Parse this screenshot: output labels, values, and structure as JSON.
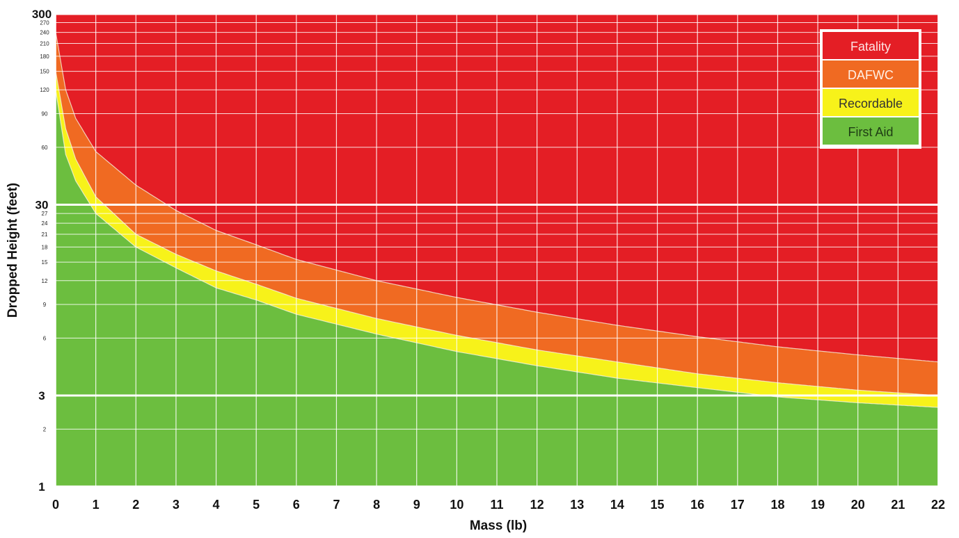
{
  "chart_data": {
    "type": "area",
    "title": "",
    "xlabel": "Mass (lb)",
    "ylabel": "Dropped Height (feet)",
    "xlim": [
      0,
      22
    ],
    "ylim": [
      1,
      300
    ],
    "y_scale": "log",
    "grid": true,
    "legend_position": "top-right",
    "x_ticks": [
      "0",
      "1",
      "2",
      "3",
      "4",
      "5",
      "6",
      "7",
      "8",
      "9",
      "10",
      "11",
      "12",
      "13",
      "14",
      "15",
      "16",
      "17",
      "18",
      "19",
      "20",
      "21",
      "22"
    ],
    "y_major_ticks": [
      {
        "value": 1,
        "label": "1"
      },
      {
        "value": 3,
        "label": "3"
      },
      {
        "value": 30,
        "label": "30"
      },
      {
        "value": 300,
        "label": "300"
      }
    ],
    "y_minor_ticks": [
      {
        "value": 2,
        "label": "2"
      },
      {
        "value": 6,
        "label": "6"
      },
      {
        "value": 9,
        "label": "9"
      },
      {
        "value": 12,
        "label": "12"
      },
      {
        "value": 15,
        "label": "15"
      },
      {
        "value": 18,
        "label": "18"
      },
      {
        "value": 21,
        "label": "21"
      },
      {
        "value": 24,
        "label": "24"
      },
      {
        "value": 27,
        "label": "27"
      },
      {
        "value": 60,
        "label": "60"
      },
      {
        "value": 90,
        "label": "90"
      },
      {
        "value": 120,
        "label": "120"
      },
      {
        "value": 150,
        "label": "150"
      },
      {
        "value": 180,
        "label": "180"
      },
      {
        "value": 210,
        "label": "210"
      },
      {
        "value": 240,
        "label": "240"
      },
      {
        "value": 270,
        "label": "270"
      }
    ],
    "legend": [
      {
        "label": "Fatality",
        "color": "#e41e25",
        "text_color": "#fde3e3"
      },
      {
        "label": "DAFWC",
        "color": "#f06a22",
        "text_color": "#fff1e6"
      },
      {
        "label": "Recordable",
        "color": "#f7f21a",
        "text_color": "#333333"
      },
      {
        "label": "First Aid",
        "color": "#6cbe3f",
        "text_color": "#1e3d14"
      }
    ],
    "series": [
      {
        "name": "First Aid",
        "color": "#6cbe3f",
        "x": [
          0,
          0.25,
          0.5,
          1,
          2,
          3,
          4,
          5,
          6,
          8,
          10,
          12,
          14,
          16,
          18,
          20,
          22
        ],
        "upper": [
          120,
          55,
          40,
          27,
          18,
          14,
          11,
          9.5,
          8,
          6.3,
          5.1,
          4.3,
          3.7,
          3.3,
          2.95,
          2.75,
          2.6
        ]
      },
      {
        "name": "Recordable",
        "color": "#f7f21a",
        "x": [
          0,
          0.25,
          0.5,
          1,
          2,
          3,
          4,
          5,
          6,
          8,
          10,
          12,
          14,
          16,
          18,
          20,
          22
        ],
        "upper": [
          150,
          75,
          52,
          33,
          21,
          16.5,
          13.5,
          11.5,
          9.7,
          7.6,
          6.2,
          5.2,
          4.5,
          3.9,
          3.5,
          3.2,
          3.0
        ]
      },
      {
        "name": "DAFWC",
        "color": "#f06a22",
        "x": [
          0,
          0.25,
          0.5,
          1,
          2,
          3,
          4,
          5,
          6,
          8,
          10,
          12,
          14,
          16,
          18,
          20,
          22
        ],
        "upper": [
          240,
          120,
          85,
          57,
          38,
          28,
          22,
          18.5,
          15.5,
          12,
          9.8,
          8.2,
          7,
          6.1,
          5.4,
          4.9,
          4.5
        ]
      },
      {
        "name": "Fatality",
        "color": "#e41e25",
        "x": [
          0,
          22
        ],
        "upper": [
          300,
          300
        ]
      }
    ]
  }
}
